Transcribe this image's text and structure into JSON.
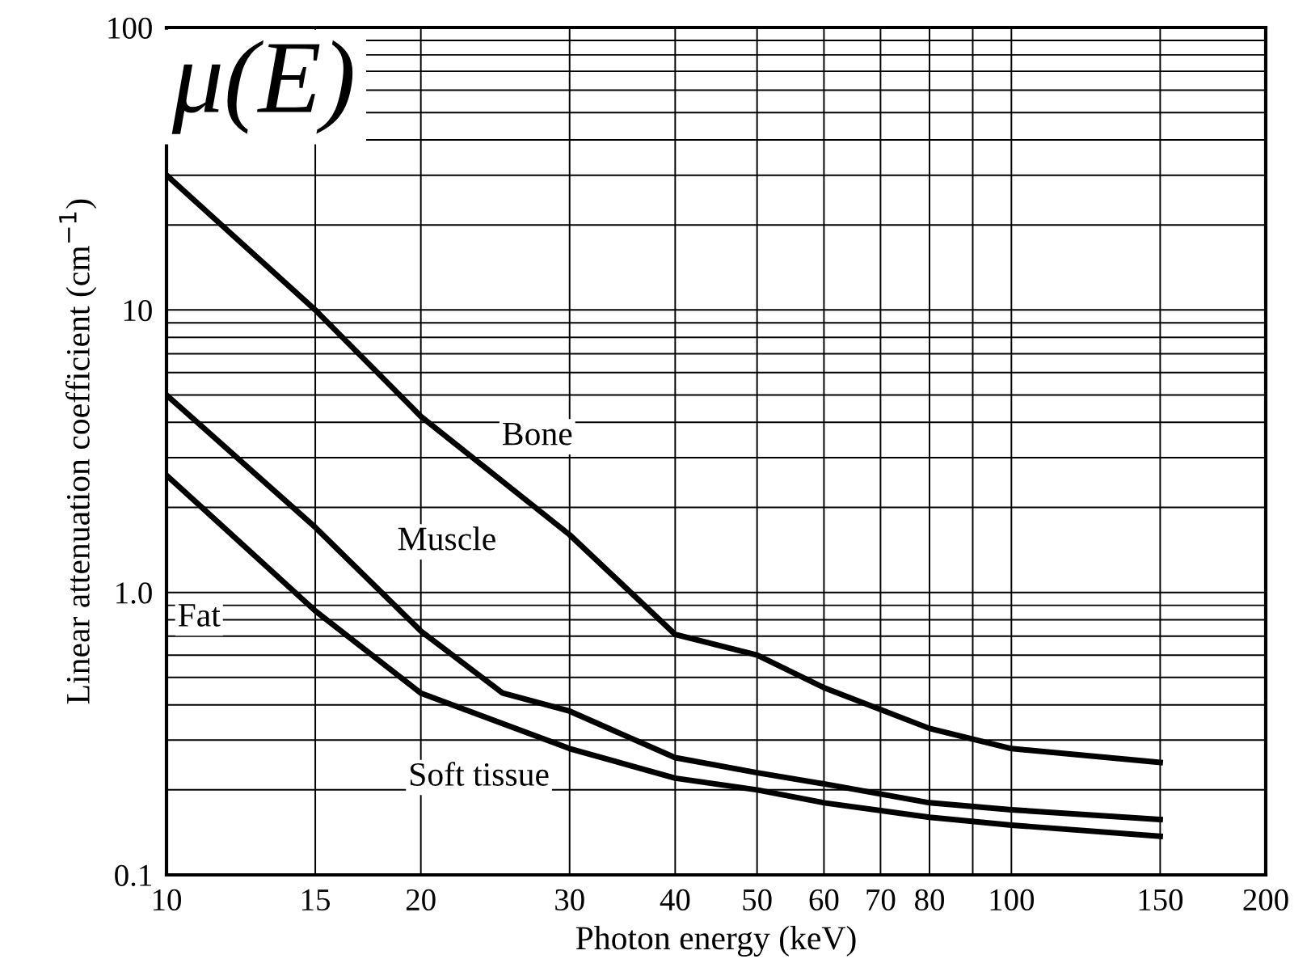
{
  "chart_data": {
    "type": "line",
    "xlabel": "Photon energy (keV)",
    "ylabel": "Linear attenuation coefficient (cm$^{−1}$)",
    "log": "xy",
    "grid": true,
    "legend": false,
    "marker": "none",
    "line_style": "solid",
    "xlim": [
      10,
      200
    ],
    "ylim": [
      0.1,
      100
    ],
    "xticks": [
      10,
      15,
      20,
      30,
      40,
      50,
      60,
      70,
      80,
      {
        "value": 90,
        "label": null
      },
      100,
      150,
      200
    ],
    "yticks": [
      0.1,
      {
        "value": 0.2,
        "label": null
      },
      {
        "value": 0.3,
        "label": null
      },
      {
        "value": 0.4,
        "label": null
      },
      {
        "value": 0.5,
        "label": null
      },
      {
        "value": 0.6,
        "label": null
      },
      {
        "value": 0.7,
        "label": null
      },
      {
        "value": 0.8,
        "label": null
      },
      {
        "value": 0.9,
        "label": null
      },
      {
        "value": 1,
        "label": "1.0"
      },
      {
        "value": 2,
        "label": null
      },
      {
        "value": 3,
        "label": null
      },
      {
        "value": 4,
        "label": null
      },
      {
        "value": 5,
        "label": null
      },
      {
        "value": 6,
        "label": null
      },
      {
        "value": 7,
        "label": null
      },
      {
        "value": 8,
        "label": null
      },
      {
        "value": 9,
        "label": null
      },
      10,
      {
        "value": 20,
        "label": null
      },
      {
        "value": 30,
        "label": null
      },
      {
        "value": 40,
        "label": null
      },
      {
        "value": 50,
        "label": null
      },
      {
        "value": 60,
        "label": null
      },
      {
        "value": 70,
        "label": null
      },
      {
        "value": 80,
        "label": null
      },
      {
        "value": 90,
        "label": null
      },
      100
    ],
    "series": [
      {
        "color": "#000000",
        "x": [
          10,
          15,
          20,
          30,
          40,
          50,
          60,
          80,
          100,
          150
        ],
        "values": [
          30,
          10,
          4.2,
          1.6,
          0.71,
          0.6,
          0.46,
          0.33,
          0.28,
          0.25
        ]
      },
      {
        "color": "#000000",
        "x": [
          10,
          15,
          20,
          25,
          30,
          40,
          50,
          60,
          80,
          100,
          150
        ],
        "values": [
          5,
          1.7,
          0.73,
          0.44,
          0.38,
          0.26,
          0.23,
          0.21,
          0.18,
          0.17,
          0.157
        ]
      },
      {
        "color": "#000000",
        "x": [
          10,
          15,
          20,
          30,
          40,
          50,
          60,
          80,
          100,
          150
        ],
        "values": [
          2.6,
          0.86,
          0.44,
          0.28,
          0.22,
          0.2,
          0.18,
          0.16,
          0.15,
          0.137
        ]
      }
    ],
    "annotations": [
      "μ(E)",
      "Bone",
      "Muscle",
      "Fat",
      "Soft tissue"
    ]
  }
}
